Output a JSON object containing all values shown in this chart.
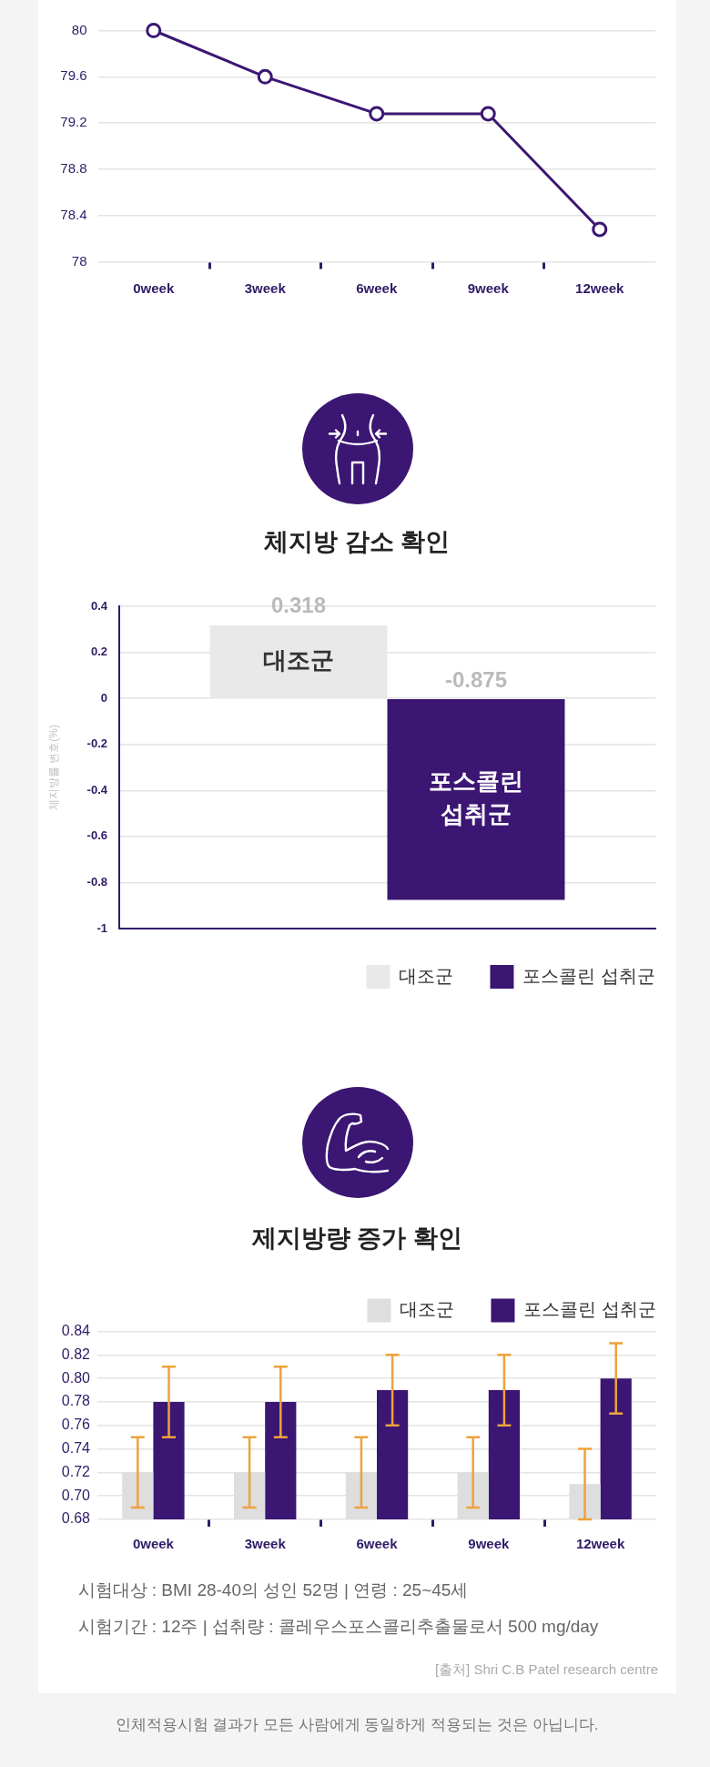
{
  "chart_data": [
    {
      "type": "line",
      "categories": [
        "0week",
        "3week",
        "6week",
        "9week",
        "12week"
      ],
      "values": [
        80,
        79.6,
        79.28,
        79.28,
        78.28
      ],
      "color": "#3b1673",
      "ylim": [
        78,
        80
      ],
      "yticks": [
        78,
        78.4,
        78.8,
        79.2,
        79.6,
        80
      ],
      "grid": "y",
      "marker": "circle",
      "line_style": "solid"
    },
    {
      "type": "bar",
      "title": "체지방 감소 확인",
      "ylabel": "체지방률 변호(%)",
      "categories": [
        null
      ],
      "series": [
        {
          "name": "대조군",
          "color": "#e9e9e9",
          "values": [
            0.318
          ]
        },
        {
          "name": "포스콜린 섭취군",
          "color": "#3b1673",
          "values": [
            -0.875
          ]
        }
      ],
      "ylim": [
        -1,
        0.4
      ],
      "yticks": [
        -1,
        -0.8,
        -0.6,
        -0.4,
        -0.2,
        0,
        0.2,
        0.4
      ],
      "grid": "y",
      "legend": "bottom right",
      "data_labels": true,
      "tick_labels": "y"
    },
    {
      "type": "bar",
      "title": "제지방량 증가 확인",
      "categories": [
        "0week",
        "3week",
        "6week",
        "9week",
        "12week"
      ],
      "series": [
        {
          "name": "대조군",
          "color": "#dedede",
          "values": [
            0.72,
            0.72,
            0.72,
            0.72,
            0.71
          ],
          "errors": [
            0.03,
            0.03,
            0.03,
            0.03,
            0.03
          ]
        },
        {
          "name": "포스콜린 섭취군",
          "color": "#3b1673",
          "values": [
            0.78,
            0.78,
            0.79,
            0.79,
            0.8
          ],
          "errors": [
            0.03,
            0.03,
            0.03,
            0.03,
            0.03
          ]
        }
      ],
      "ylim": [
        0.68,
        0.84
      ],
      "yticks": [
        0.68,
        {
          "value": 0.7,
          "label": "0.70"
        },
        0.72,
        0.74,
        0.76,
        0.78,
        {
          "value": 0.8,
          "label": "0.80"
        },
        0.82,
        0.84
      ],
      "grid": "y",
      "legend": "top right",
      "annotations": [
        "시험대상 : BMI 28-40의 성인 52명 | 연령 : 25~45세",
        "시험기간 : 12주 | 섭취량 : 콜레우스포스콜리추출물로서 500 mg/day",
        "[출처] Shri C.B Patel research centre",
        "인체적용시험 결과가 모든 사람에게 동일하게 적용되는 것은 아닙니다."
      ]
    }
  ]
}
